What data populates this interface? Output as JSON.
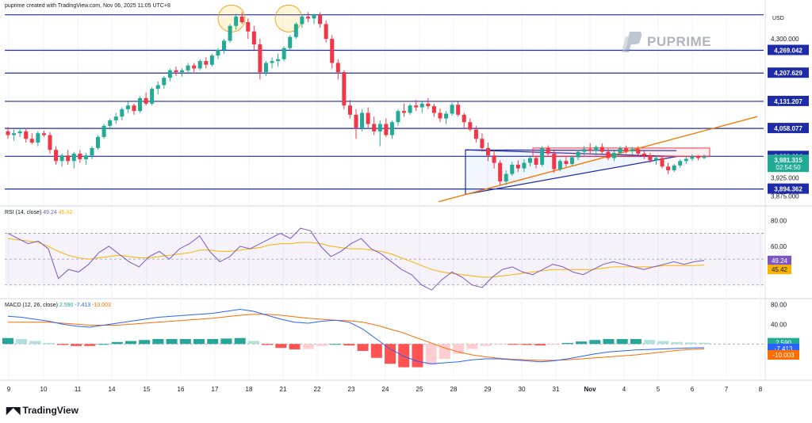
{
  "header": {
    "attribution": "puprime created with TradingView.com, Nov 06, 2025 11:05 UTC+8"
  },
  "currency": "USD",
  "watermark": "PUPRIME",
  "logo": "TradingView",
  "colors": {
    "up": "#22ab94",
    "down": "#f23645",
    "level_line": "#1e2ba8",
    "trend": "#f57c00",
    "rsi": "#7e57c2",
    "rsi_ma": "#f7b500",
    "macd": "#2962ff",
    "signal": "#ff6d00"
  },
  "rsi_panel": {
    "title": "RSI (14, close)",
    "value": "49.24",
    "ma": "45.42",
    "levels": [
      "80.00",
      "60.00"
    ]
  },
  "macd_panel": {
    "title": "MACD (12, 26, close)",
    "hist": "2.590",
    "macd": "-7.413",
    "signal": "-10.003",
    "levels": [
      "80.00",
      "40.00"
    ]
  },
  "chart_data": {
    "type": "candlestick",
    "symbol_currency": "USD",
    "x_labels": [
      "9",
      "10",
      "11",
      "14",
      "15",
      "16",
      "17",
      "18",
      "21",
      "22",
      "23",
      "24",
      "25",
      "28",
      "29",
      "30",
      "31",
      "Nov",
      "4",
      "5",
      "6",
      "7",
      "8"
    ],
    "price_ticks": [
      "4,300.000",
      "4,058.077",
      "3,925.000",
      "3,875.000"
    ],
    "levels": [
      {
        "label": "4,269.042",
        "value": 4269.042
      },
      {
        "label": "4,207.629",
        "value": 4207.629
      },
      {
        "label": "4,131.207",
        "value": 4131.207
      },
      {
        "label": "4,058.077",
        "value": 4058.077
      },
      {
        "label": "3,982.684",
        "value": 3982.684
      },
      {
        "label": "3,894.362",
        "value": 3894.362
      }
    ],
    "current_price": {
      "label": "3,981.315",
      "countdown": "02:54:50"
    },
    "top_level": 4365,
    "ylim": [
      3855,
      4375
    ],
    "candles": [
      [
        4050,
        4062,
        4030,
        4040
      ],
      [
        4040,
        4055,
        4025,
        4045
      ],
      [
        4045,
        4060,
        4035,
        4050
      ],
      [
        4050,
        4058,
        4020,
        4030
      ],
      [
        4030,
        4045,
        4015,
        4020
      ],
      [
        4020,
        4050,
        4010,
        4045
      ],
      [
        4045,
        4052,
        4035,
        4040
      ],
      [
        4040,
        4048,
        3990,
        4000
      ],
      [
        4000,
        4010,
        3960,
        3970
      ],
      [
        3970,
        3990,
        3955,
        3985
      ],
      [
        3985,
        4000,
        3960,
        3970
      ],
      [
        3970,
        3995,
        3950,
        3990
      ],
      [
        3990,
        4000,
        3965,
        3975
      ],
      [
        3975,
        3992,
        3960,
        3985
      ],
      [
        3985,
        4010,
        3975,
        4005
      ],
      [
        4005,
        4040,
        4000,
        4035
      ],
      [
        4035,
        4070,
        4030,
        4065
      ],
      [
        4065,
        4085,
        4055,
        4080
      ],
      [
        4080,
        4100,
        4070,
        4090
      ],
      [
        4090,
        4115,
        4080,
        4110
      ],
      [
        4110,
        4130,
        4100,
        4120
      ],
      [
        4120,
        4125,
        4095,
        4105
      ],
      [
        4105,
        4145,
        4100,
        4140
      ],
      [
        4140,
        4155,
        4120,
        4125
      ],
      [
        4125,
        4170,
        4120,
        4165
      ],
      [
        4165,
        4185,
        4150,
        4175
      ],
      [
        4175,
        4200,
        4165,
        4195
      ],
      [
        4195,
        4220,
        4185,
        4215
      ],
      [
        4215,
        4225,
        4200,
        4210
      ],
      [
        4210,
        4220,
        4198,
        4215
      ],
      [
        4215,
        4235,
        4205,
        4228
      ],
      [
        4228,
        4235,
        4210,
        4220
      ],
      [
        4220,
        4245,
        4215,
        4240
      ],
      [
        4240,
        4250,
        4220,
        4230
      ],
      [
        4230,
        4260,
        4225,
        4255
      ],
      [
        4255,
        4275,
        4245,
        4270
      ],
      [
        4270,
        4300,
        4260,
        4295
      ],
      [
        4295,
        4340,
        4290,
        4335
      ],
      [
        4335,
        4368,
        4325,
        4360
      ],
      [
        4360,
        4372,
        4340,
        4345
      ],
      [
        4345,
        4355,
        4300,
        4320
      ],
      [
        4320,
        4335,
        4270,
        4285
      ],
      [
        4285,
        4300,
        4190,
        4210
      ],
      [
        4210,
        4240,
        4200,
        4235
      ],
      [
        4235,
        4250,
        4220,
        4240
      ],
      [
        4240,
        4260,
        4225,
        4245
      ],
      [
        4245,
        4280,
        4240,
        4275
      ],
      [
        4275,
        4310,
        4270,
        4305
      ],
      [
        4305,
        4345,
        4300,
        4340
      ],
      [
        4340,
        4365,
        4330,
        4360
      ],
      [
        4360,
        4372,
        4345,
        4355
      ],
      [
        4355,
        4368,
        4340,
        4365
      ],
      [
        4365,
        4372,
        4330,
        4340
      ],
      [
        4340,
        4350,
        4290,
        4300
      ],
      [
        4300,
        4310,
        4220,
        4235
      ],
      [
        4235,
        4245,
        4190,
        4210
      ],
      [
        4210,
        4215,
        4110,
        4120
      ],
      [
        4120,
        4135,
        4085,
        4095
      ],
      [
        4095,
        4110,
        4030,
        4060
      ],
      [
        4060,
        4110,
        4050,
        4100
      ],
      [
        4100,
        4115,
        4060,
        4070
      ],
      [
        4070,
        4090,
        4040,
        4050
      ],
      [
        4050,
        4080,
        4010,
        4070
      ],
      [
        4070,
        4085,
        4035,
        4040
      ],
      [
        4040,
        4080,
        4030,
        4075
      ],
      [
        4075,
        4110,
        4065,
        4105
      ],
      [
        4105,
        4125,
        4090,
        4100
      ],
      [
        4100,
        4125,
        4095,
        4120
      ],
      [
        4120,
        4135,
        4105,
        4115
      ],
      [
        4115,
        4130,
        4100,
        4125
      ],
      [
        4125,
        4140,
        4110,
        4118
      ],
      [
        4118,
        4125,
        4090,
        4100
      ],
      [
        4100,
        4112,
        4075,
        4085
      ],
      [
        4085,
        4105,
        4070,
        4098
      ],
      [
        4098,
        4128,
        4092,
        4122
      ],
      [
        4122,
        4130,
        4090,
        4095
      ],
      [
        4095,
        4100,
        4060,
        4075
      ],
      [
        4075,
        4085,
        4050,
        4055
      ],
      [
        4055,
        4065,
        4020,
        4030
      ],
      [
        4030,
        4045,
        3995,
        4005
      ],
      [
        4005,
        4020,
        3970,
        3985
      ],
      [
        3985,
        4000,
        3950,
        3965
      ],
      [
        3965,
        3972,
        3905,
        3915
      ],
      [
        3915,
        3945,
        3905,
        3935
      ],
      [
        3935,
        3968,
        3930,
        3960
      ],
      [
        3960,
        3972,
        3940,
        3950
      ],
      [
        3950,
        3975,
        3940,
        3965
      ],
      [
        3965,
        3985,
        3955,
        3978
      ],
      [
        3978,
        3982,
        3950,
        3960
      ],
      [
        3960,
        4010,
        3955,
        4005
      ],
      [
        4005,
        4012,
        3985,
        3990
      ],
      [
        3990,
        3998,
        3938,
        3948
      ],
      [
        3948,
        3975,
        3942,
        3970
      ],
      [
        3970,
        3980,
        3955,
        3962
      ],
      [
        3962,
        3985,
        3958,
        3980
      ],
      [
        3980,
        4000,
        3972,
        3995
      ],
      [
        3995,
        4010,
        3985,
        4002
      ],
      [
        4002,
        4018,
        3990,
        3998
      ],
      [
        3998,
        4012,
        3985,
        4008
      ],
      [
        4008,
        4018,
        3990,
        3995
      ],
      [
        3995,
        4005,
        3972,
        3978
      ],
      [
        3978,
        3998,
        3970,
        3992
      ],
      [
        3992,
        4010,
        3985,
        4004
      ],
      [
        4004,
        4012,
        3990,
        3996
      ],
      [
        3996,
        4008,
        3988,
        4002
      ],
      [
        4002,
        4010,
        3985,
        3990
      ],
      [
        3990,
        3998,
        3975,
        3985
      ],
      [
        3985,
        3992,
        3965,
        3972
      ],
      [
        3972,
        3985,
        3960,
        3978
      ],
      [
        3978,
        3982,
        3950,
        3955
      ],
      [
        3955,
        3965,
        3935,
        3945
      ],
      [
        3945,
        3962,
        3940,
        3958
      ],
      [
        3958,
        3975,
        3952,
        3970
      ],
      [
        3970,
        3982,
        3962,
        3976
      ],
      [
        3976,
        3988,
        3970,
        3982
      ],
      [
        3982,
        3986,
        3972,
        3978
      ],
      [
        3978,
        3988,
        3975,
        3981
      ]
    ],
    "rsi": [
      70,
      66,
      62,
      64,
      58,
      35,
      42,
      40,
      46,
      55,
      60,
      54,
      48,
      44,
      52,
      56,
      50,
      58,
      62,
      68,
      56,
      48,
      52,
      60,
      58,
      62,
      66,
      70,
      66,
      74,
      72,
      60,
      52,
      56,
      62,
      66,
      58,
      54,
      48,
      42,
      38,
      30,
      26,
      34,
      40,
      36,
      30,
      28,
      36,
      42,
      44,
      40,
      38,
      42,
      46,
      44,
      40,
      38,
      42,
      46,
      48,
      46,
      44,
      42,
      44,
      46,
      48,
      46,
      48,
      49
    ],
    "rsi_ma": [
      66,
      65,
      64,
      63,
      60,
      56,
      53,
      51,
      50,
      51,
      52,
      53,
      52,
      51,
      51,
      52,
      53,
      54,
      55,
      57,
      57,
      56,
      56,
      57,
      58,
      59,
      61,
      62,
      62,
      63,
      63,
      62,
      60,
      59,
      58,
      58,
      57,
      56,
      54,
      51,
      48,
      45,
      42,
      40,
      39,
      38,
      37,
      36,
      36,
      37,
      38,
      39,
      40,
      41,
      42,
      42,
      42,
      42,
      42,
      43,
      44,
      44,
      44,
      44,
      44,
      45,
      45,
      45,
      45,
      45.4
    ],
    "macd": [
      56,
      54,
      50,
      46,
      40,
      36,
      34,
      38,
      42,
      46,
      50,
      54,
      56,
      58,
      60,
      62,
      66,
      70,
      66,
      58,
      50,
      44,
      42,
      46,
      48,
      44,
      30,
      10,
      -10,
      -25,
      -35,
      -40,
      -38,
      -36,
      -32,
      -30,
      -30,
      -32,
      -34,
      -36,
      -34,
      -30,
      -25,
      -20,
      -16,
      -14,
      -12,
      -11,
      -10,
      -9,
      -8,
      -7.4
    ],
    "signal": [
      44,
      44,
      44,
      44,
      42,
      40,
      38,
      38,
      38,
      40,
      42,
      44,
      46,
      48,
      50,
      52,
      55,
      58,
      60,
      60,
      58,
      55,
      52,
      50,
      48,
      47,
      44,
      38,
      30,
      22,
      12,
      2,
      -8,
      -16,
      -22,
      -26,
      -29,
      -31,
      -32,
      -33,
      -33,
      -32,
      -30,
      -28,
      -26,
      -24,
      -22,
      -19,
      -16,
      -13,
      -11,
      -10
    ]
  }
}
